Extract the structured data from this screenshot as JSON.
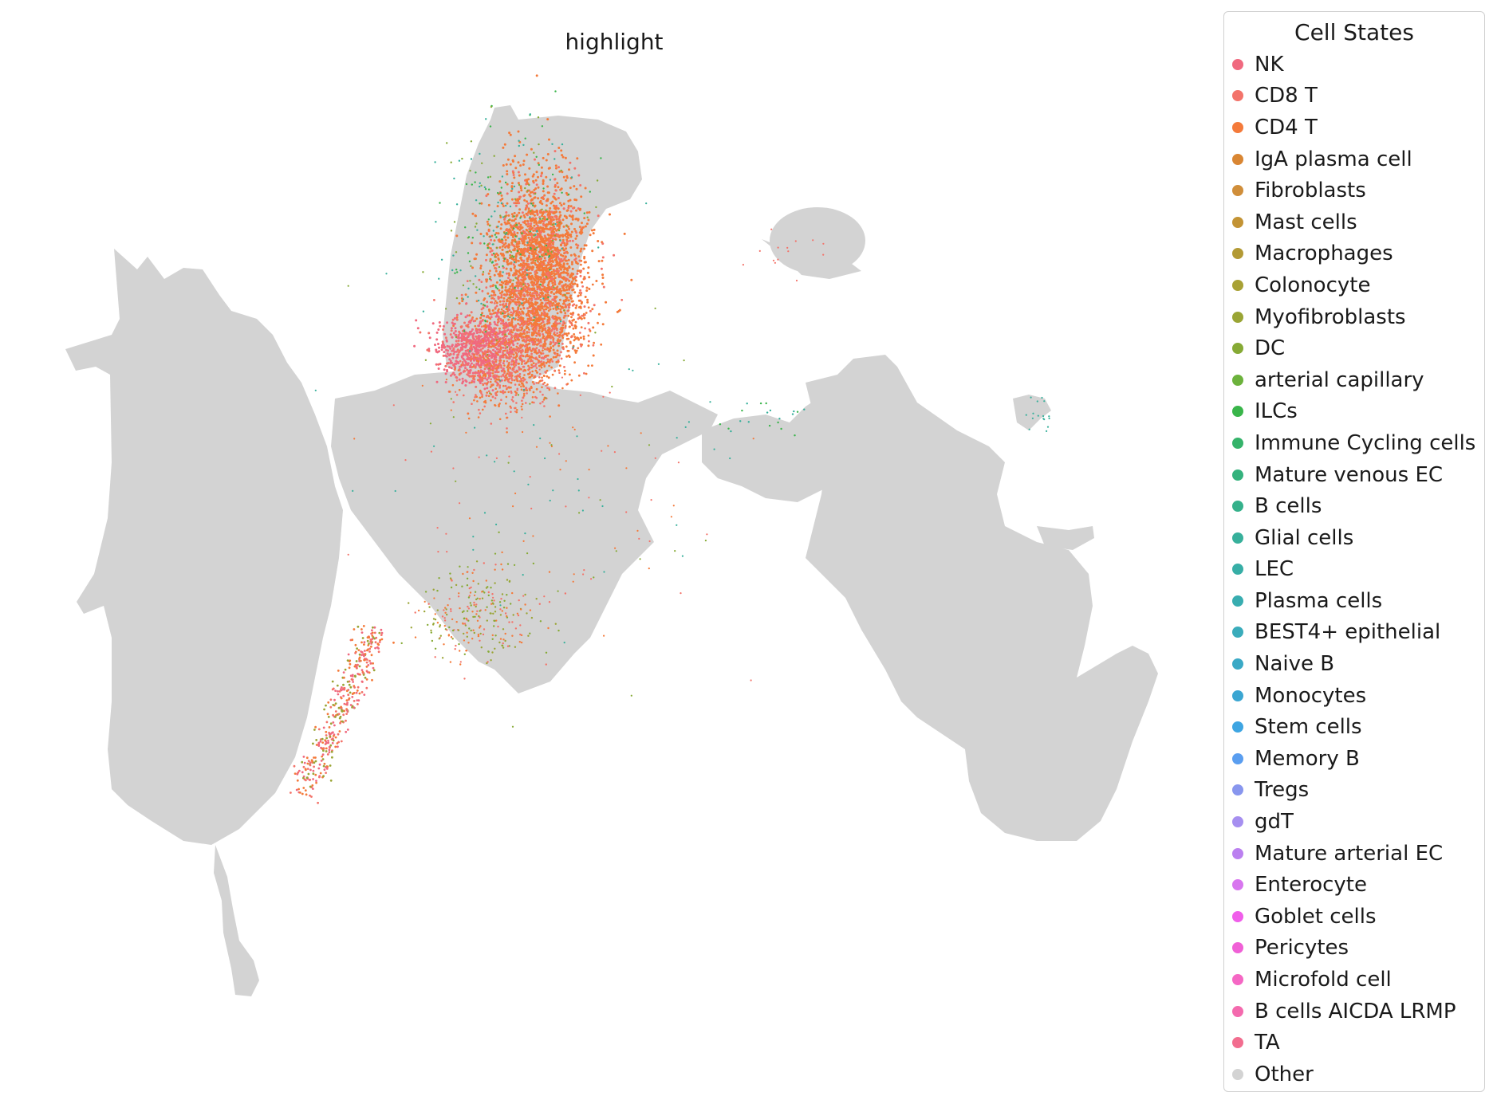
{
  "chart_data": {
    "type": "scatter",
    "title": "highlight",
    "legend": {
      "title": "Cell States",
      "placement": "right",
      "entries": [
        {
          "label": "NK",
          "color": "#f0697f"
        },
        {
          "label": "CD8 T",
          "color": "#f3736a"
        },
        {
          "label": "CD4 T",
          "color": "#f47a3a"
        },
        {
          "label": "IgA plasma cell",
          "color": "#d98633"
        },
        {
          "label": "Fibroblasts",
          "color": "#d08e3a"
        },
        {
          "label": "Mast cells",
          "color": "#c39334"
        },
        {
          "label": "Macrophages",
          "color": "#b39a35"
        },
        {
          "label": "Colonocyte",
          "color": "#a8a135"
        },
        {
          "label": "Myofibroblasts",
          "color": "#9aa535"
        },
        {
          "label": "DC",
          "color": "#86aa35"
        },
        {
          "label": "arterial capillary",
          "color": "#6cb23c"
        },
        {
          "label": "ILCs",
          "color": "#39b54a"
        },
        {
          "label": "Immune Cycling cells",
          "color": "#35b36a"
        },
        {
          "label": "Mature venous EC",
          "color": "#34b27d"
        },
        {
          "label": "B cells",
          "color": "#35b18b"
        },
        {
          "label": "Glial cells",
          "color": "#37b09b"
        },
        {
          "label": "LEC",
          "color": "#37aea6"
        },
        {
          "label": "Plasma cells",
          "color": "#38adb0"
        },
        {
          "label": "BEST4+ epithelial",
          "color": "#3aacbb"
        },
        {
          "label": "Naive B",
          "color": "#3aa9c6"
        },
        {
          "label": "Monocytes",
          "color": "#3ba6d2"
        },
        {
          "label": "Stem cells",
          "color": "#3ea5e2"
        },
        {
          "label": "Memory B",
          "color": "#5a9ef0"
        },
        {
          "label": "Tregs",
          "color": "#8896ee"
        },
        {
          "label": "gdT",
          "color": "#a68ff0"
        },
        {
          "label": "Mature arterial EC",
          "color": "#bb80f0"
        },
        {
          "label": "Enterocyte",
          "color": "#d876ef"
        },
        {
          "label": "Goblet cells",
          "color": "#f05eea"
        },
        {
          "label": "Pericytes",
          "color": "#f060d6"
        },
        {
          "label": "Microfold cell",
          "color": "#f567c4"
        },
        {
          "label": "B cells AICDA LRMP",
          "color": "#f46aae"
        },
        {
          "label": "TA",
          "color": "#f26d8f"
        },
        {
          "label": "Other",
          "color": "#d3d3d3"
        }
      ]
    },
    "axes_visible": false,
    "grid": false
  }
}
